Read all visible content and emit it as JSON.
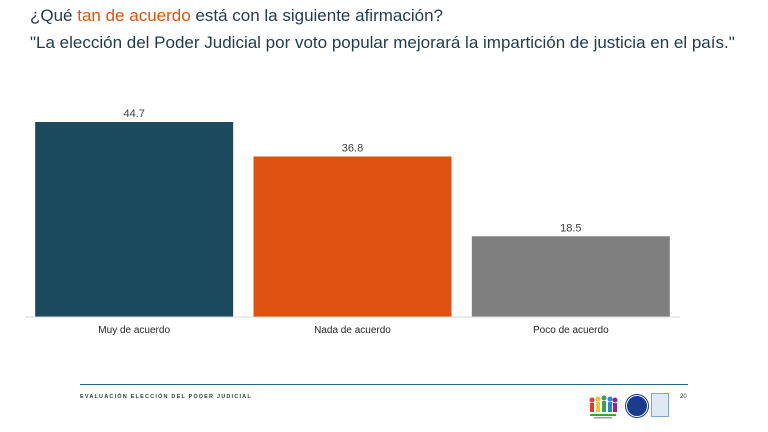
{
  "header": {
    "question_pre": "¿Qué ",
    "question_highlight": "tan de acuerdo",
    "question_post": " está con la siguiente afirmación?",
    "statement": "\"La elección del Poder Judicial por voto popular mejorará la impartición de justicia en el país.\""
  },
  "chart_data": {
    "type": "bar",
    "categories": [
      "Muy de acuerdo",
      "Nada de acuerdo",
      "Poco de acuerdo"
    ],
    "values": [
      44.7,
      36.8,
      18.5
    ],
    "value_labels": [
      "44.7",
      "36.8",
      "18.5"
    ],
    "colors": [
      "#1b4a5e",
      "#e0520f",
      "#7f7f7f"
    ],
    "title": "",
    "xlabel": "",
    "ylabel": "",
    "ylim": [
      0,
      44.7
    ],
    "grid": false,
    "legend": "none"
  },
  "footer": {
    "text": "EVALUACIÓN ELECCIÓN DEL PODER JUDICIAL",
    "page": "20",
    "logos": [
      "people-logo",
      "circle-seal-logo",
      "badge-logo"
    ]
  }
}
